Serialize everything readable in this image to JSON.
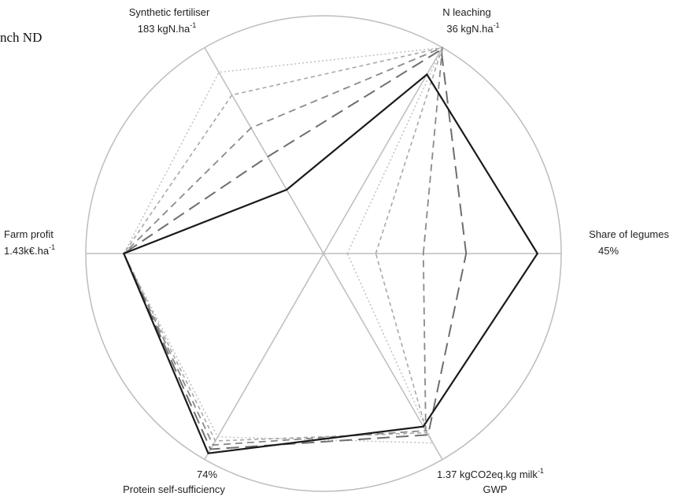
{
  "fragment_text": "nch ND",
  "chart_data": {
    "type": "radar",
    "grid": true,
    "axes": [
      {
        "key": "share_legumes",
        "label": "Share of legumes",
        "max_label": "45%"
      },
      {
        "key": "n_leaching",
        "label": "N leaching",
        "max_label": "36 kgN.ha",
        "max_label_sup": "-1"
      },
      {
        "key": "synthetic_fertiliser",
        "label": "Synthetic fertiliser",
        "max_label": "183 kgN.ha",
        "max_label_sup": "-1"
      },
      {
        "key": "farm_profit",
        "label": "Farm profit",
        "max_label": "1.43k€.ha",
        "max_label_sup": "-1"
      },
      {
        "key": "protein_self_sufficiency",
        "label": "Protein self-sufficiency",
        "max_label": "74%"
      },
      {
        "key": "gwp",
        "label": "GWP",
        "max_label": "1.37 kgCO2eq.kg milk",
        "max_label_sup": "-1"
      }
    ],
    "series": [
      {
        "style": "solid-black",
        "color": "#1a1a1a",
        "dash": "",
        "width": 2.2,
        "values": [
          0.9,
          0.87,
          0.31,
          0.84,
          0.97,
          0.84
        ]
      },
      {
        "style": "long-dash",
        "color": "#6e6e6e",
        "dash": "16,8",
        "width": 2.0,
        "values": [
          0.6,
          0.99,
          0.47,
          0.84,
          0.95,
          0.88
        ]
      },
      {
        "style": "medium-dash",
        "color": "#8a8a8a",
        "dash": "9,6",
        "width": 1.8,
        "values": [
          0.42,
          1.0,
          0.61,
          0.84,
          0.93,
          0.86
        ]
      },
      {
        "style": "short-dash",
        "color": "#a8a8a8",
        "dash": "5,4",
        "width": 1.6,
        "values": [
          0.22,
          1.0,
          0.77,
          0.84,
          0.91,
          0.87
        ]
      },
      {
        "style": "dotted",
        "color": "#bcbcbc",
        "dash": "2,3",
        "width": 1.4,
        "values": [
          0.1,
          1.0,
          0.88,
          0.84,
          0.89,
          0.92
        ]
      }
    ]
  }
}
